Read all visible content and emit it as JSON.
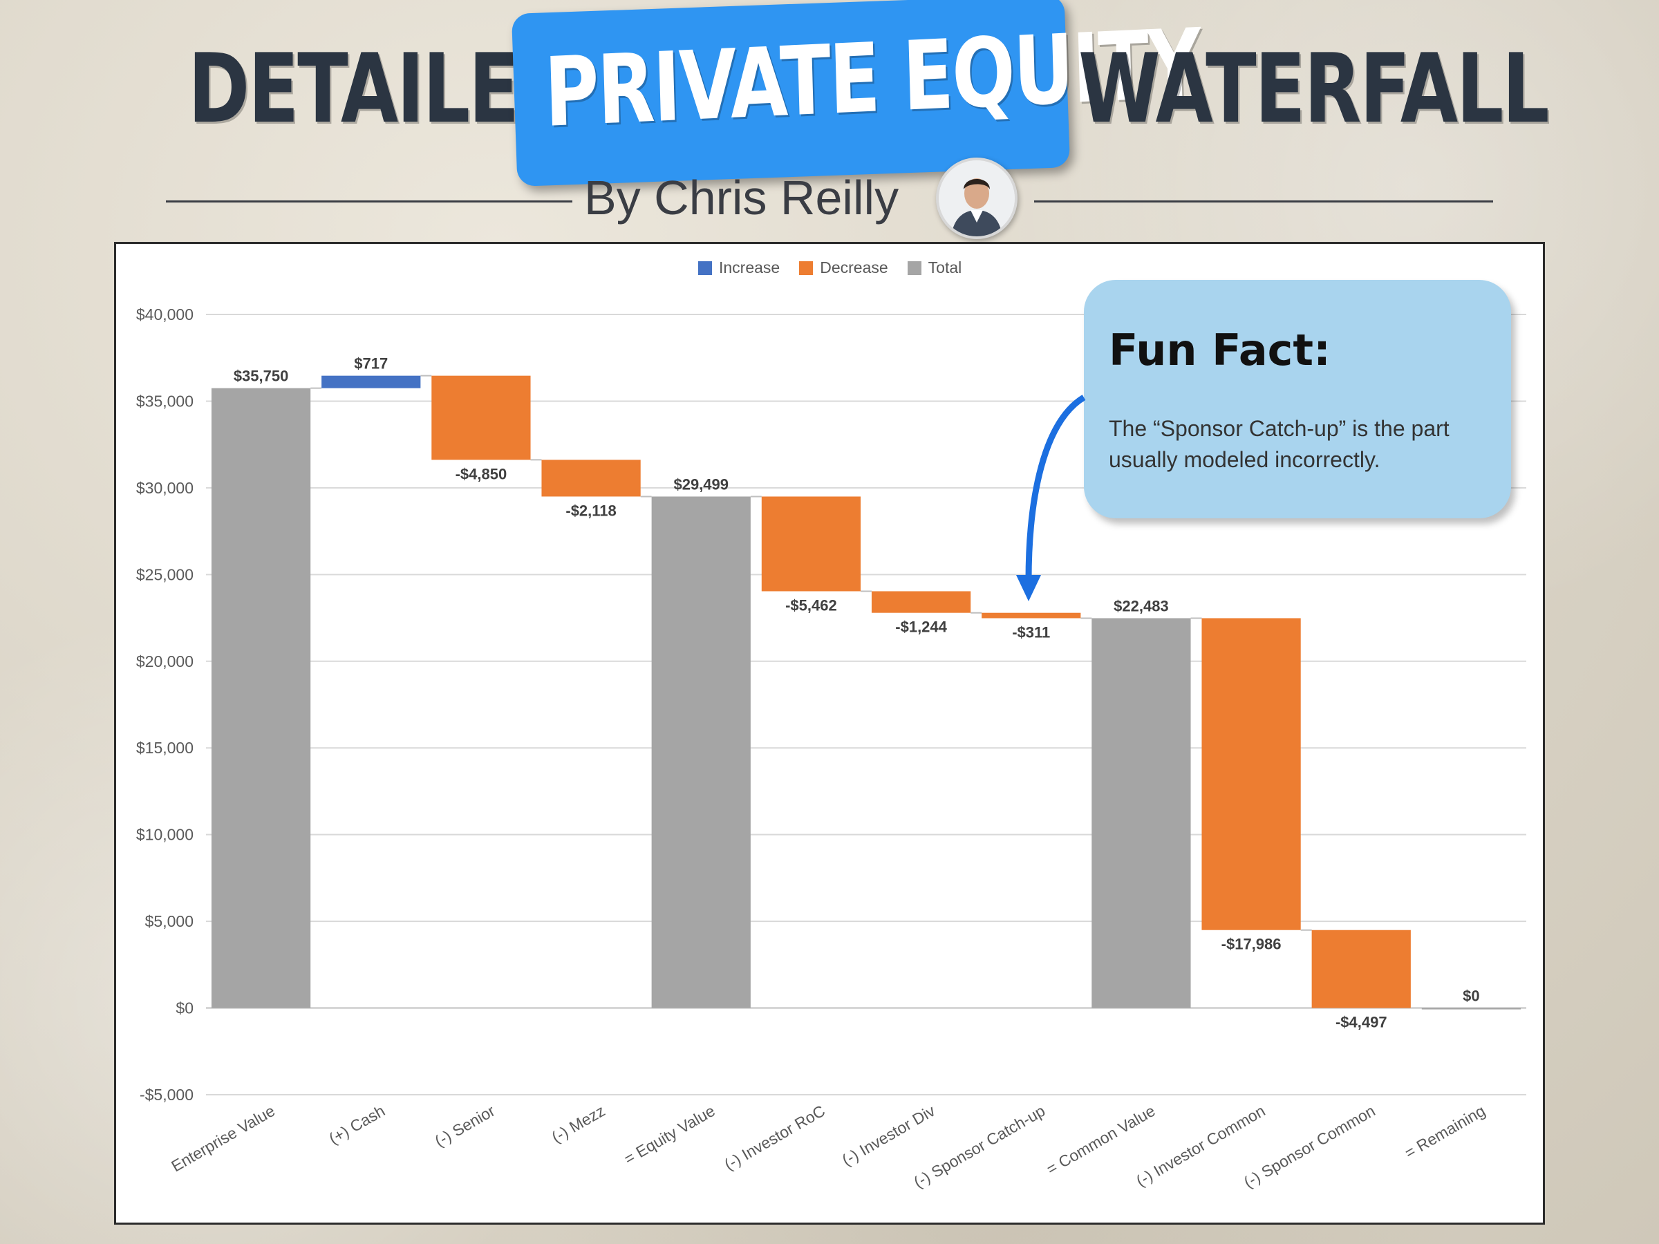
{
  "header": {
    "title_left": "DETAILED",
    "title_highlight": "PRIVATE EQUITY",
    "title_right": "WATERFALL",
    "byline": "By Chris Reilly"
  },
  "colors": {
    "increase": "#4472c4",
    "decrease": "#ed7d31",
    "total": "#a5a5a5",
    "title_highlight_bg": "#2f95f2",
    "callout_bg": "#a9d4ee",
    "arrow": "#1c6fe0"
  },
  "legend": {
    "increase": "Increase",
    "decrease": "Decrease",
    "total": "Total"
  },
  "callout": {
    "title": "Fun Fact:",
    "text": "The “Sponsor Catch-up” is the part usually modeled incorrectly."
  },
  "chart_data": {
    "type": "bar",
    "subtype": "waterfall",
    "title": "",
    "xlabel": "",
    "ylabel": "",
    "ylim": [
      -5000,
      40000
    ],
    "yticks": [
      40000,
      35000,
      30000,
      25000,
      20000,
      15000,
      10000,
      5000,
      0,
      -5000
    ],
    "ytick_labels": [
      "$40,000",
      "$35,000",
      "$30,000",
      "$25,000",
      "$20,000",
      "$15,000",
      "$10,000",
      "$5,000",
      "$0",
      "-$5,000"
    ],
    "grid": true,
    "legend_position": "top-center",
    "categories": [
      "Enterprise Value",
      "(+) Cash",
      "(-) Senior",
      "(-) Mezz",
      "= Equity Value",
      "(-) Investor RoC",
      "(-) Investor Div",
      "(-) Sponsor Catch-up",
      "= Common Value",
      "(-) Investor Common",
      "(-) Sponsor Common",
      "= Remaining"
    ],
    "values": [
      35750,
      717,
      -4850,
      -2118,
      29499,
      -5462,
      -1244,
      -311,
      22483,
      -17986,
      -4497,
      0
    ],
    "kinds": [
      "total",
      "increase",
      "decrease",
      "decrease",
      "total",
      "decrease",
      "decrease",
      "decrease",
      "total",
      "decrease",
      "decrease",
      "total"
    ],
    "data_labels": [
      "$35,750",
      "$717",
      "-$4,850",
      "-$2,118",
      "$29,499",
      "-$5,462",
      "-$1,244",
      "-$311",
      "$22,483",
      "-$17,986",
      "-$4,497",
      "$0"
    ]
  }
}
